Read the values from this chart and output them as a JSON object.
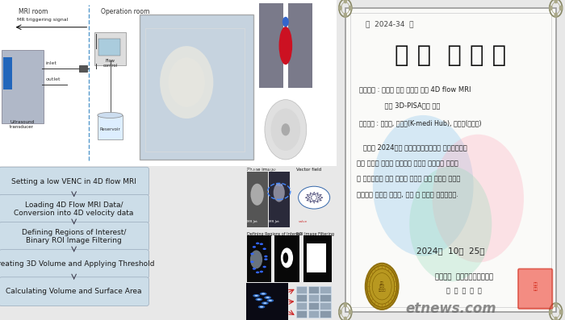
{
  "bg_color": "#e8e8e8",
  "cert_border_color": "#aaaaaa",
  "cert_title": "우 수  논 문 상",
  "cert_number": "제  2024-34  호",
  "cert_paper_title1": "논문제목 : 승모판 역류 진단을 위한 4D flow MRI",
  "cert_paper_title2": "            기반 3D-PISA기법 개발",
  "cert_authors": "논문저자 : 권민성, 허형규(K-medi Hub), 이주연(강원대)",
  "cert_body1": "   귀하는 2024년도 한국가시화정보학회 추계학술대회",
  "cert_body2": "에서 우수한 논문을 발표하여 연구의 독창성과 우수성",
  "cert_body3": "을 인정받았을 뿐만 아니라 가시화 기술 분야의 발전에",
  "cert_body4": "이바지한 공로가 크므로, 이에 이 상장을 수여합니다.",
  "cert_date": "2024년  10월  25일",
  "cert_org": "사단법인  한국가시화정보학회",
  "cert_chair": "회  장  선  재  용",
  "flow_steps": [
    "Setting a low VENC in 4D flow MRI",
    "Loading 4D Flow MRI Data/\nConversion into 4D velocity data",
    "Defining Regions of Interest/\nBinary ROI Image Filtering",
    "Creating 3D Volume and Applying Threshold",
    "Calculating Volume and Surface Area"
  ],
  "step_bg": "#ccdde8",
  "step_text_color": "#1a1a1a",
  "diagram_labels": [
    "MRI room",
    "Operation room"
  ],
  "mri_trigger": "MR triggering signal",
  "inlet_label": "inlet",
  "outlet_label": "outlet",
  "transducer_label": "Ultrasound\ntransducer",
  "flow_control_label": "Flow\ncontrol",
  "reservoir_label": "Reservoir",
  "watermark": "etnews.com",
  "circle_colors": [
    "#99ccee",
    "#ffaabb",
    "#99ddbb"
  ],
  "cert_bg": "#fafaf8",
  "left_top_bg": "#ffffff",
  "left_bot_bg": "#f0f2f4"
}
